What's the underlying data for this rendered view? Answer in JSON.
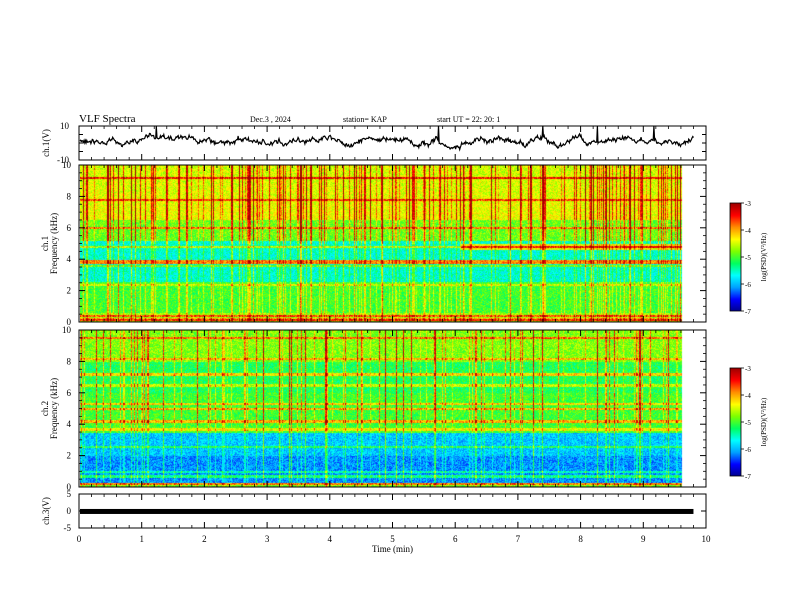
{
  "header": {
    "title": "VLF Spectra",
    "date": "Dec.3  , 2024",
    "station": "station= KAP",
    "start": "start  UT  =   22: 20: 1"
  },
  "chart_data": [
    {
      "type": "line",
      "panel": "ch1-waveform",
      "ylabel": "ch.1(V)",
      "ylim": [
        -10,
        10
      ],
      "yticks": [
        "10",
        "-10"
      ],
      "xlim": [
        0,
        10
      ],
      "description_series": "ch.1 voltage envelope"
    },
    {
      "type": "heatmap",
      "panel": "ch1-spectrogram",
      "ylabel": "ch.1\nFrequency  (kHz)",
      "ylabel_line1": "ch.1",
      "ylabel_line2": "Frequency  (kHz)",
      "ylim": [
        0,
        10
      ],
      "yticks": [
        "0",
        "2",
        "4",
        "6",
        "8",
        "10"
      ],
      "xlim": [
        0,
        10
      ],
      "data_extent_min": 9.8,
      "colorbar": {
        "ticks": [
          "-3",
          "-4",
          "-5",
          "-6",
          "-7"
        ],
        "label": "log(PSD)(V²/Hz)",
        "range": [
          -7,
          -3
        ]
      }
    },
    {
      "type": "heatmap",
      "panel": "ch2-spectrogram",
      "ylabel_line1": "ch.2",
      "ylabel_line2": "Frequency  (kHz)",
      "ylim": [
        0,
        10
      ],
      "yticks": [
        "0",
        "2",
        "4",
        "6",
        "8",
        "10"
      ],
      "xlim": [
        0,
        10
      ],
      "data_extent_min": 9.8,
      "colorbar": {
        "ticks": [
          "-3",
          "-4",
          "-5",
          "-6",
          "-7"
        ],
        "label": "log(PSD)(V²/Hz)",
        "range": [
          -7,
          -3
        ]
      }
    },
    {
      "type": "line",
      "panel": "ch3-waveform",
      "ylabel": "ch.3(V)",
      "ylim": [
        -5,
        5
      ],
      "yticks": [
        "5",
        "0",
        "-5"
      ],
      "xlim": [
        0,
        10
      ],
      "xticks": [
        "0",
        "1",
        "2",
        "3",
        "4",
        "5",
        "6",
        "7",
        "8",
        "9",
        "10"
      ],
      "xlabel": "Time  (min)",
      "series_level": [
        -0.6,
        0.6
      ]
    }
  ],
  "colors": {
    "axis": "#000000",
    "background": "#ffffff",
    "colormap": [
      "#00008c",
      "#0000ff",
      "#00a0ff",
      "#00ffff",
      "#00ff60",
      "#7cff00",
      "#ffff00",
      "#ff9000",
      "#ff0000",
      "#a00000",
      "#ffffff"
    ]
  }
}
